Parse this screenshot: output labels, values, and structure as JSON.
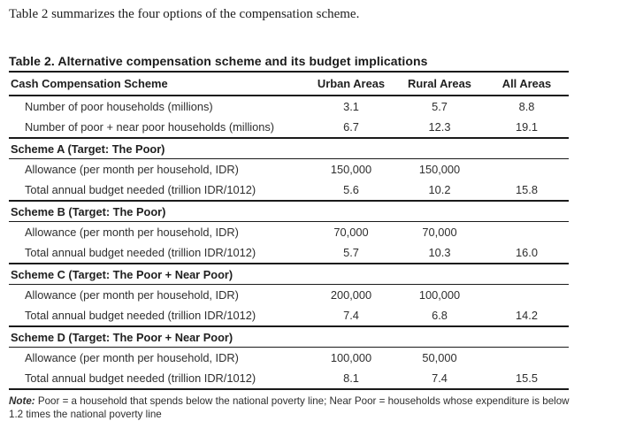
{
  "intro": "Table 2 summarizes the four options of the compensation scheme.",
  "table": {
    "title": "Table 2. Alternative compensation scheme and its budget implications",
    "columns": [
      "Cash Compensation Scheme",
      "Urban Areas",
      "Rural Areas",
      "All Areas"
    ],
    "rows": [
      {
        "type": "data",
        "label": "Number of poor households (millions)",
        "values": [
          "3.1",
          "5.7",
          "8.8"
        ]
      },
      {
        "type": "data",
        "label": "Number of poor + near poor households (millions)",
        "values": [
          "6.7",
          "12.3",
          "19.1"
        ]
      },
      {
        "type": "section",
        "label": "Scheme A (Target: The Poor)"
      },
      {
        "type": "data",
        "label": "Allowance (per month per household, IDR)",
        "values": [
          "150,000",
          "150,000",
          ""
        ]
      },
      {
        "type": "data",
        "label": "Total annual budget needed (trillion IDR/1012)",
        "values": [
          "5.6",
          "10.2",
          "15.8"
        ]
      },
      {
        "type": "section",
        "label": "Scheme B (Target: The Poor)"
      },
      {
        "type": "data",
        "label": "Allowance (per month per household, IDR)",
        "values": [
          "70,000",
          "70,000",
          ""
        ]
      },
      {
        "type": "data",
        "label": "Total annual budget needed (trillion IDR/1012)",
        "values": [
          "5.7",
          "10.3",
          "16.0"
        ]
      },
      {
        "type": "section",
        "label": "Scheme C (Target: The Poor + Near Poor)"
      },
      {
        "type": "data",
        "label": "Allowance (per month per household, IDR)",
        "values": [
          "200,000",
          "100,000",
          ""
        ]
      },
      {
        "type": "data",
        "label": "Total annual budget needed (trillion IDR/1012)",
        "values": [
          "7.4",
          "6.8",
          "14.2"
        ]
      },
      {
        "type": "section",
        "label": "Scheme D (Target: The Poor + Near Poor)"
      },
      {
        "type": "data",
        "label": "Allowance (per month per household, IDR)",
        "values": [
          "100,000",
          "50,000",
          ""
        ]
      },
      {
        "type": "data",
        "label": "Total annual budget needed (trillion IDR/1012)",
        "values": [
          "8.1",
          "7.4",
          "15.5"
        ]
      }
    ],
    "note_label": "Note:",
    "note_text": "Poor = a household that spends below the national poverty line; Near Poor = households whose expenditure is below 1.2 times the national poverty line"
  },
  "colors": {
    "text": "#2a2a2a",
    "line": "#1a1a1a",
    "background": "#ffffff"
  }
}
